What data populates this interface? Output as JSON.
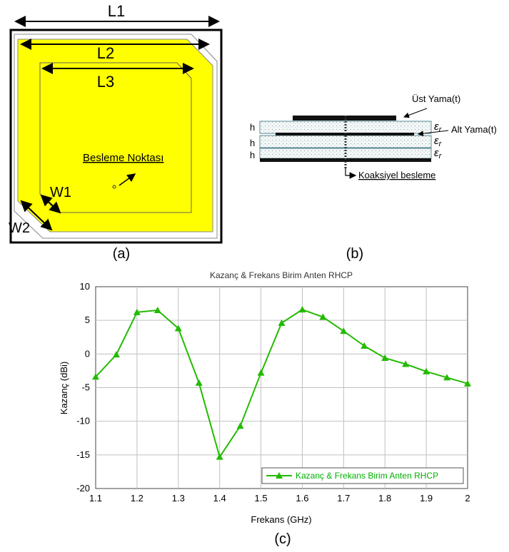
{
  "colors": {
    "patch_fill": "#ffff00",
    "series": "#22bb00",
    "grid": "#c0c0c0"
  },
  "antenna_top": {
    "L1": "L1",
    "L2": "L2",
    "L3": "L3",
    "W1": "W1",
    "W2": "W2",
    "feed_label": "Besleme Noktası",
    "caption": "(a)"
  },
  "cross_section": {
    "top_patch": "Üst Yama(t)",
    "bottom_patch": "Alt Yama(t)",
    "h1": "h",
    "h2": "h",
    "h3": "h",
    "eps1": "ε",
    "eps2": "ε",
    "eps3": "ε",
    "eps_sub": "r",
    "feed": "Koaksiyel besleme",
    "caption": "(b)"
  },
  "chart_caption": "(c)",
  "chart_data": {
    "type": "line",
    "title": "Kazanç & Frekans Birim Anten RHCP",
    "xlabel": "Frekans (GHz)",
    "ylabel": "Kazanç (dBi)",
    "xlim": [
      1.1,
      2.0
    ],
    "ylim": [
      -20,
      10
    ],
    "xticks": [
      "1.1",
      "1.2",
      "1.3",
      "1.4",
      "1.5",
      "1.6",
      "1.7",
      "1.8",
      "1.9",
      "2"
    ],
    "yticks": [
      "10",
      "5",
      "0",
      "-5",
      "-10",
      "-15",
      "-20"
    ],
    "grid": true,
    "legend_position": "bottom-right",
    "series": [
      {
        "name": "Kazanç & Frekans Birim Anten RHCP",
        "x": [
          1.1,
          1.15,
          1.2,
          1.25,
          1.3,
          1.35,
          1.4,
          1.45,
          1.5,
          1.55,
          1.6,
          1.65,
          1.7,
          1.75,
          1.8,
          1.85,
          1.9,
          1.95,
          2.0
        ],
        "y": [
          -3.4,
          -0.1,
          6.2,
          6.5,
          3.8,
          -4.3,
          -15.3,
          -10.7,
          -2.8,
          4.6,
          6.6,
          5.5,
          3.4,
          1.2,
          -0.6,
          -1.5,
          -2.6,
          -3.5,
          -4.4
        ]
      }
    ]
  }
}
